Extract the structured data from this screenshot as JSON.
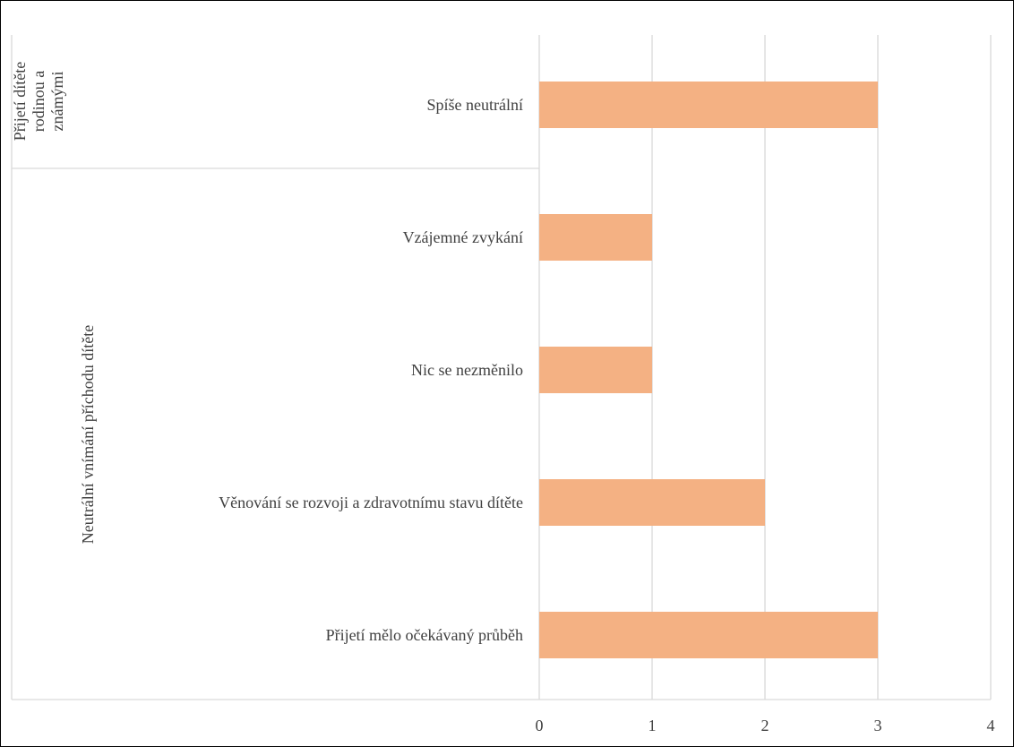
{
  "chart_data": {
    "type": "bar",
    "orientation": "horizontal",
    "groups": [
      {
        "name": "Přijetí dítěte rodinou a známými",
        "name_lines": [
          "Přijetí dítěte",
          "rodinou a",
          "známými"
        ],
        "categories": [
          "Spíše neutrální"
        ],
        "values": [
          3
        ]
      },
      {
        "name": "Neutrální vnímání příchodu dítěte",
        "name_lines": [
          "Neutrální vnímání příchodu dítěte"
        ],
        "categories": [
          "Vzájemné zvykání",
          "Nic se nezměnilo",
          "Věnování se rozvoji a zdravotnímu stavu dítěte",
          "Přijetí mělo očekávaný průběh"
        ],
        "values": [
          1,
          1,
          2,
          3
        ]
      }
    ],
    "categories": [
      "Spíše neutrální",
      "Vzájemné zvykání",
      "Nic se nezměnilo",
      "Věnování se rozvoji a zdravotnímu stavu dítěte",
      "Přijetí mělo očekávaný průběh"
    ],
    "values": [
      3,
      1,
      1,
      2,
      3
    ],
    "xlim": [
      0,
      4
    ],
    "xticks": [
      "0",
      "1",
      "2",
      "3",
      "4"
    ],
    "grid": true,
    "bar_color": "#F4B183",
    "gridline_color": "#D9D9D9",
    "axis_line_color": "#D9D9D9",
    "title": "",
    "xlabel": "",
    "ylabel": ""
  }
}
